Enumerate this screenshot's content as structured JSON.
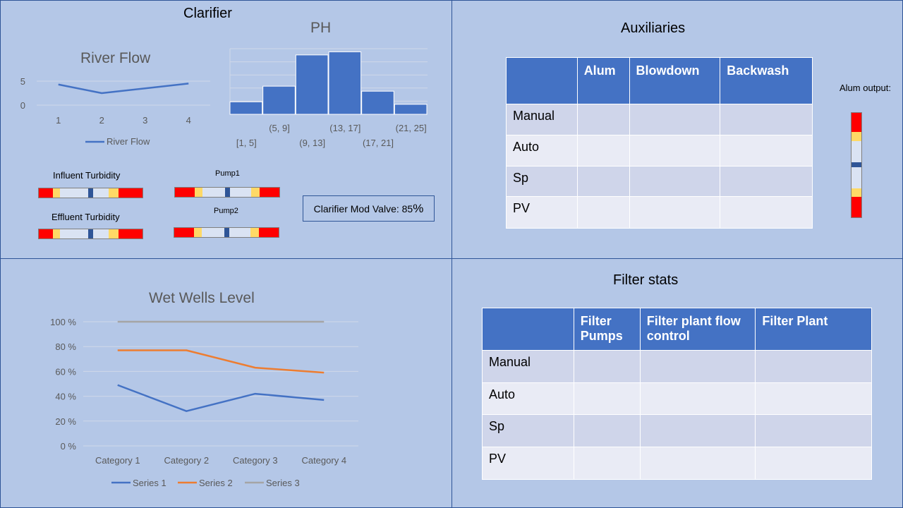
{
  "clarifier": {
    "title": "Clarifier",
    "influent_label": "Influent Turbidity",
    "effluent_label": "Effluent Turbidity",
    "pump1_label": "Pump1",
    "pump2_label": "Pump2",
    "valve_label": "Clarifier Mod Valve: 85",
    "valve_pct_symbol": "%",
    "valve_value": 85
  },
  "auxiliaries": {
    "title": "Auxiliaries",
    "columns": [
      "",
      "Alum",
      "Blowdown",
      "Backwash"
    ],
    "rows": [
      "Manual",
      "Auto",
      "Sp",
      "PV"
    ],
    "alum_output_label": "Alum output:"
  },
  "filter_stats": {
    "title": "Filter stats",
    "columns": [
      "",
      "Filter Pumps",
      "Filter plant  flow control",
      "Filter Plant"
    ],
    "rows": [
      "Manual",
      "Auto",
      "Sp",
      "PV"
    ]
  },
  "colors": {
    "bar_blue": "#4472c4",
    "series2_orange": "#ed7d31",
    "series3_gray": "#a5a5a5",
    "indicator_red": "#ff0000",
    "indicator_yellow": "#ffd966",
    "indicator_navy": "#2f5597"
  },
  "chart_data": [
    {
      "type": "line",
      "title": "River Flow",
      "categories": [
        "1",
        "2",
        "3",
        "4"
      ],
      "series": [
        {
          "name": "River Flow",
          "values": [
            4.3,
            2.5,
            3.5,
            4.5
          ]
        }
      ],
      "yticks": [
        "5",
        "0"
      ],
      "ylim": [
        0,
        5
      ],
      "legend": "bottom",
      "grid": true
    },
    {
      "type": "bar",
      "title": "PH",
      "categories": [
        "[1, 5]",
        "(5, 9]",
        "(9, 13]",
        "(13, 17]",
        "(17, 21]",
        "(21, 25]"
      ],
      "values": [
        2,
        4.5,
        9.5,
        10,
        3.7,
        1.6
      ],
      "ylim": [
        0,
        10.5
      ],
      "grid": true
    },
    {
      "type": "line",
      "title": "Wet Wells Level",
      "categories": [
        "Category 1",
        "Category 2",
        "Category 3",
        "Category 4"
      ],
      "series": [
        {
          "name": "Series 1",
          "values": [
            49,
            28,
            42,
            37
          ]
        },
        {
          "name": "Series 2",
          "values": [
            77,
            77,
            63,
            59
          ]
        },
        {
          "name": "Series 3",
          "values": [
            100,
            100,
            100,
            100
          ]
        }
      ],
      "yticks": [
        "100 %",
        "80 %",
        "60 %",
        "40 %",
        "20 %",
        "0 %"
      ],
      "ylim": [
        0,
        100
      ],
      "legend": "bottom",
      "grid": true
    }
  ]
}
